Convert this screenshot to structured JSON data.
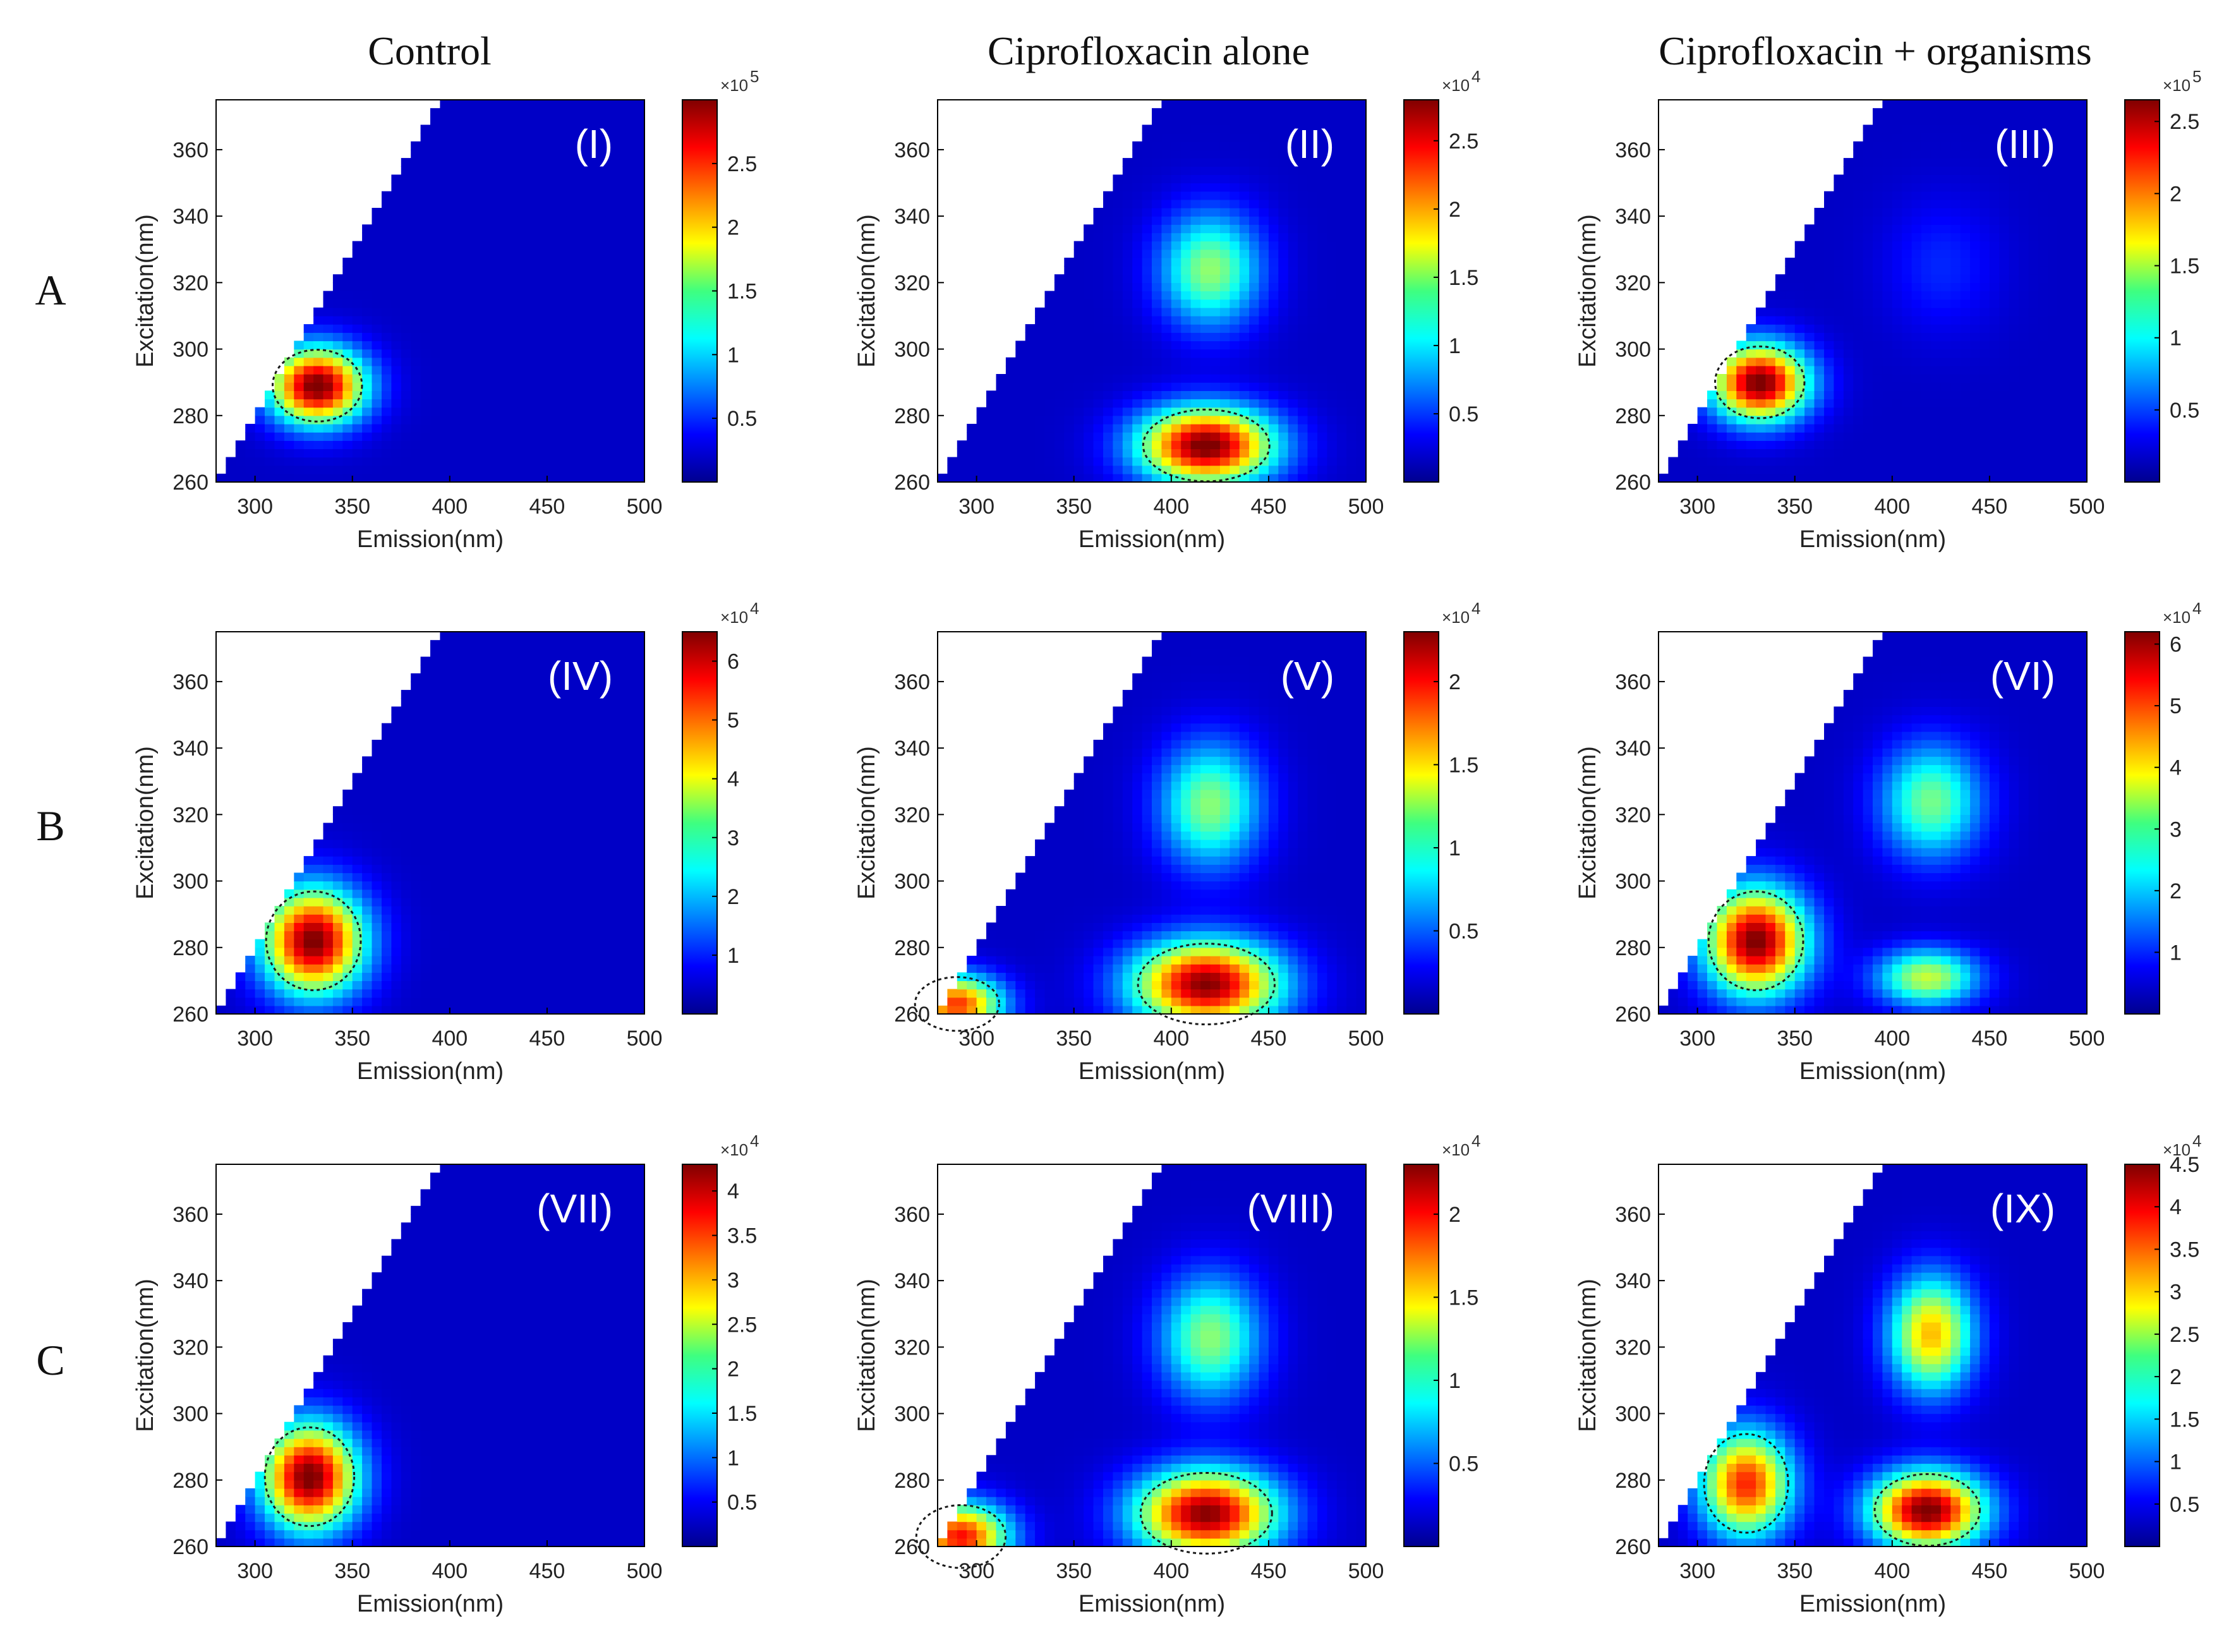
{
  "figure": {
    "column_titles": [
      "Control",
      "Ciprofloxacin alone",
      "Ciprofloxacin + organisms"
    ],
    "row_labels": [
      "A",
      "B",
      "C"
    ]
  },
  "chart_data": [
    {
      "type": "heatmap",
      "panel": "(I)",
      "row": "A",
      "column": "Control",
      "xlabel": "Emission(nm)",
      "ylabel": "Excitation(nm)",
      "xlim": [
        280,
        500
      ],
      "ylim": [
        260,
        375
      ],
      "xticks": [
        "300",
        "350",
        "400",
        "450",
        "500"
      ],
      "yticks": [
        "260",
        "280",
        "300",
        "320",
        "340",
        "360"
      ],
      "colorbar": {
        "multiplier": "×10",
        "exponent": "5",
        "max": 3.0,
        "ticks": [
          "0.5",
          "1",
          "1.5",
          "2",
          "2.5"
        ]
      },
      "peaks": [
        {
          "emission": 332,
          "excitation": 289,
          "intensity": 2.95,
          "sigma_em": 17,
          "sigma_ex": 8
        }
      ]
    },
    {
      "type": "heatmap",
      "panel": "(II)",
      "row": "A",
      "column": "Ciprofloxacin alone",
      "xlabel": "Emission(nm)",
      "ylabel": "Excitation(nm)",
      "xlim": [
        280,
        500
      ],
      "ylim": [
        260,
        375
      ],
      "xticks": [
        "300",
        "350",
        "400",
        "450",
        "500"
      ],
      "yticks": [
        "260",
        "280",
        "300",
        "320",
        "340",
        "360"
      ],
      "colorbar": {
        "multiplier": "×10",
        "exponent": "4",
        "max": 2.8,
        "ticks": [
          "0.5",
          "1",
          "1.5",
          "2",
          "2.5"
        ]
      },
      "peaks": [
        {
          "emission": 418,
          "excitation": 271,
          "intensity": 2.75,
          "sigma_em": 24,
          "sigma_ex": 8
        },
        {
          "emission": 420,
          "excitation": 324,
          "intensity": 1.3,
          "sigma_em": 18,
          "sigma_ex": 12
        }
      ]
    },
    {
      "type": "heatmap",
      "panel": "(III)",
      "row": "A",
      "column": "Ciprofloxacin + organisms",
      "xlabel": "Emission(nm)",
      "ylabel": "Excitation(nm)",
      "xlim": [
        280,
        500
      ],
      "ylim": [
        260,
        375
      ],
      "xticks": [
        "300",
        "350",
        "400",
        "450",
        "500"
      ],
      "yticks": [
        "260",
        "280",
        "300",
        "320",
        "340",
        "360"
      ],
      "colorbar": {
        "multiplier": "×10",
        "exponent": "5",
        "max": 2.65,
        "ticks": [
          "0.5",
          "1",
          "1.5",
          "2",
          "2.5"
        ]
      },
      "peaks": [
        {
          "emission": 332,
          "excitation": 290,
          "intensity": 2.6,
          "sigma_em": 17,
          "sigma_ex": 8
        },
        {
          "emission": 425,
          "excitation": 325,
          "intensity": 0.25,
          "sigma_em": 20,
          "sigma_ex": 14
        }
      ]
    },
    {
      "type": "heatmap",
      "panel": "(IV)",
      "row": "B",
      "column": "Control",
      "xlabel": "Emission(nm)",
      "ylabel": "Excitation(nm)",
      "xlim": [
        280,
        500
      ],
      "ylim": [
        260,
        375
      ],
      "xticks": [
        "300",
        "350",
        "400",
        "450",
        "500"
      ],
      "yticks": [
        "260",
        "280",
        "300",
        "320",
        "340",
        "360"
      ],
      "colorbar": {
        "multiplier": "×10",
        "exponent": "4",
        "max": 6.5,
        "ticks": [
          "1",
          "2",
          "3",
          "4",
          "5",
          "6"
        ]
      },
      "peaks": [
        {
          "emission": 330,
          "excitation": 282,
          "intensity": 6.3,
          "sigma_em": 18,
          "sigma_ex": 11
        }
      ]
    },
    {
      "type": "heatmap",
      "panel": "(V)",
      "row": "B",
      "column": "Ciprofloxacin alone",
      "xlabel": "Emission(nm)",
      "ylabel": "Excitation(nm)",
      "xlim": [
        280,
        500
      ],
      "ylim": [
        260,
        375
      ],
      "xticks": [
        "300",
        "350",
        "400",
        "450",
        "500"
      ],
      "yticks": [
        "260",
        "280",
        "300",
        "320",
        "340",
        "360"
      ],
      "colorbar": {
        "multiplier": "×10",
        "exponent": "4",
        "max": 2.3,
        "ticks": [
          "0.5",
          "1",
          "1.5",
          "2"
        ]
      },
      "peaks": [
        {
          "emission": 418,
          "excitation": 269,
          "intensity": 2.2,
          "sigma_em": 26,
          "sigma_ex": 9
        },
        {
          "emission": 420,
          "excitation": 323,
          "intensity": 1.05,
          "sigma_em": 18,
          "sigma_ex": 13
        },
        {
          "emission": 290,
          "excitation": 263,
          "intensity": 1.8,
          "sigma_em": 16,
          "sigma_ex": 6
        }
      ]
    },
    {
      "type": "heatmap",
      "panel": "(VI)",
      "row": "B",
      "column": "Ciprofloxacin + organisms",
      "xlabel": "Emission(nm)",
      "ylabel": "Excitation(nm)",
      "xlim": [
        280,
        500
      ],
      "ylim": [
        260,
        375
      ],
      "xticks": [
        "300",
        "350",
        "400",
        "450",
        "500"
      ],
      "yticks": [
        "260",
        "280",
        "300",
        "320",
        "340",
        "360"
      ],
      "colorbar": {
        "multiplier": "×10",
        "exponent": "4",
        "max": 6.2,
        "ticks": [
          "1",
          "2",
          "3",
          "4",
          "5",
          "6"
        ]
      },
      "peaks": [
        {
          "emission": 330,
          "excitation": 282,
          "intensity": 6.0,
          "sigma_em": 18,
          "sigma_ex": 11
        },
        {
          "emission": 418,
          "excitation": 271,
          "intensity": 3.2,
          "sigma_em": 18,
          "sigma_ex": 6
        },
        {
          "emission": 420,
          "excitation": 324,
          "intensity": 2.7,
          "sigma_em": 18,
          "sigma_ex": 12
        }
      ]
    },
    {
      "type": "heatmap",
      "panel": "(VII)",
      "row": "C",
      "column": "Control",
      "xlabel": "Emission(nm)",
      "ylabel": "Excitation(nm)",
      "xlim": [
        280,
        500
      ],
      "ylim": [
        260,
        375
      ],
      "xticks": [
        "300",
        "350",
        "400",
        "450",
        "500"
      ],
      "yticks": [
        "260",
        "280",
        "300",
        "320",
        "340",
        "360"
      ],
      "colorbar": {
        "multiplier": "×10",
        "exponent": "4",
        "max": 4.3,
        "ticks": [
          "0.5",
          "1",
          "1.5",
          "2",
          "2.5",
          "3",
          "3.5",
          "4"
        ]
      },
      "peaks": [
        {
          "emission": 328,
          "excitation": 281,
          "intensity": 4.2,
          "sigma_em": 17,
          "sigma_ex": 11
        }
      ]
    },
    {
      "type": "heatmap",
      "panel": "(VIII)",
      "row": "C",
      "column": "Ciprofloxacin alone",
      "xlabel": "Emission(nm)",
      "ylabel": "Excitation(nm)",
      "xlim": [
        280,
        500
      ],
      "ylim": [
        260,
        375
      ],
      "xticks": [
        "300",
        "350",
        "400",
        "450",
        "500"
      ],
      "yticks": [
        "260",
        "280",
        "300",
        "320",
        "340",
        "360"
      ],
      "colorbar": {
        "multiplier": "×10",
        "exponent": "4",
        "max": 2.3,
        "ticks": [
          "0.5",
          "1",
          "1.5",
          "2"
        ]
      },
      "peaks": [
        {
          "emission": 418,
          "excitation": 270,
          "intensity": 2.2,
          "sigma_em": 25,
          "sigma_ex": 9
        },
        {
          "emission": 420,
          "excitation": 323,
          "intensity": 1.05,
          "sigma_em": 18,
          "sigma_ex": 13
        },
        {
          "emission": 292,
          "excitation": 263,
          "intensity": 1.9,
          "sigma_em": 17,
          "sigma_ex": 7
        }
      ]
    },
    {
      "type": "heatmap",
      "panel": "(IX)",
      "row": "C",
      "column": "Ciprofloxacin + organisms",
      "xlabel": "Emission(nm)",
      "ylabel": "Excitation(nm)",
      "xlim": [
        280,
        500
      ],
      "ylim": [
        260,
        375
      ],
      "xticks": [
        "300",
        "350",
        "400",
        "450",
        "500"
      ],
      "yticks": [
        "260",
        "280",
        "300",
        "320",
        "340",
        "360"
      ],
      "colorbar": {
        "multiplier": "×10",
        "exponent": "4",
        "max": 4.5,
        "ticks": [
          "0.5",
          "1",
          "1.5",
          "2",
          "2.5",
          "3",
          "3.5",
          "4",
          "4.5"
        ]
      },
      "peaks": [
        {
          "emission": 325,
          "excitation": 279,
          "intensity": 3.6,
          "sigma_em": 16,
          "sigma_ex": 11
        },
        {
          "emission": 418,
          "excitation": 271,
          "intensity": 4.4,
          "sigma_em": 20,
          "sigma_ex": 8
        },
        {
          "emission": 420,
          "excitation": 324,
          "intensity": 2.9,
          "sigma_em": 15,
          "sigma_ex": 12
        }
      ]
    }
  ]
}
